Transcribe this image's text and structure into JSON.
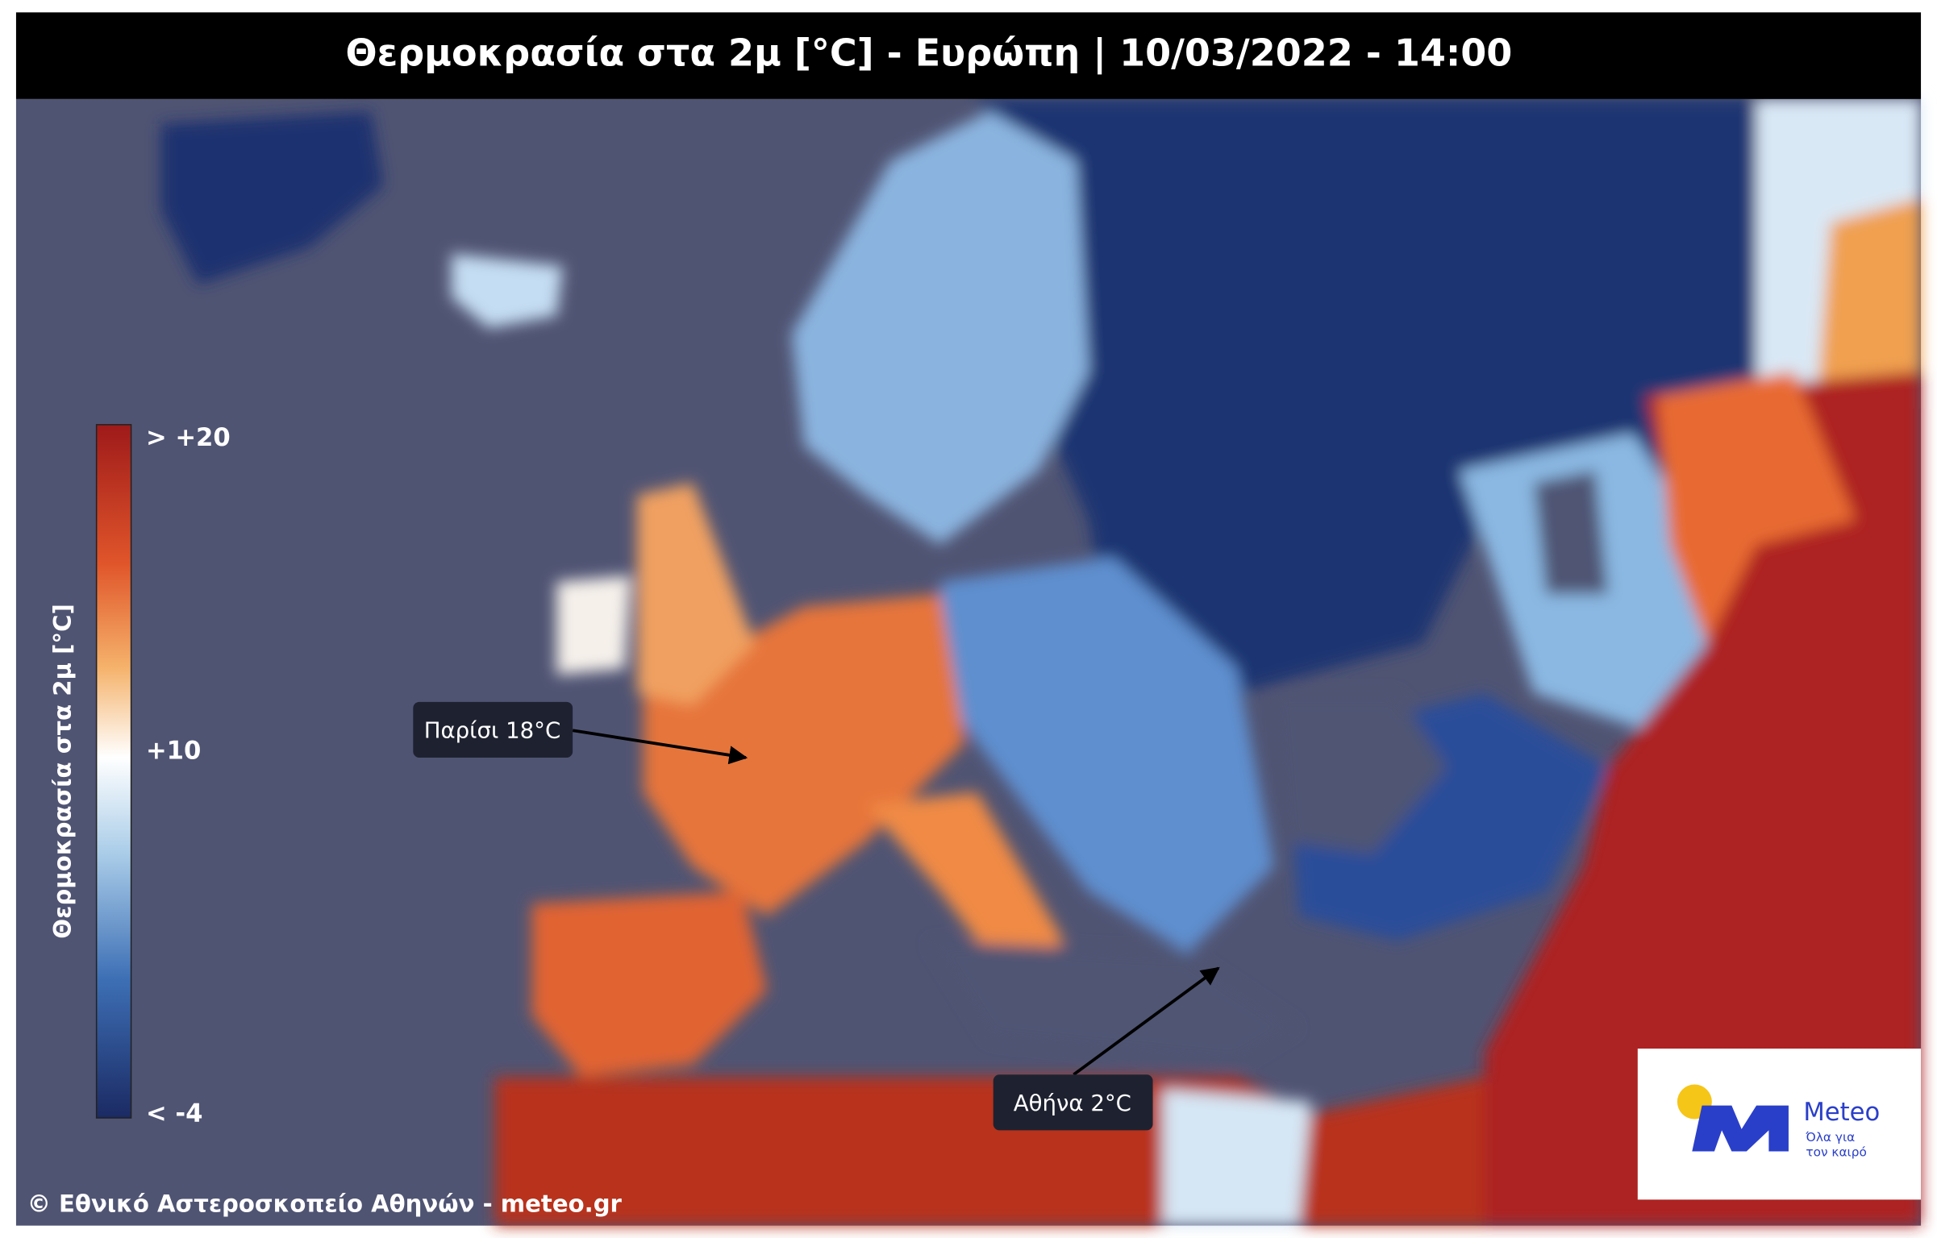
{
  "header": {
    "title": "Θερμοκρασία στα 2μ [°C] - Ευρώπη | 10/03/2022 - 14:00"
  },
  "legend": {
    "label": "Θερμοκρασία στα 2μ [°C]",
    "ticks": [
      "> +20",
      "+10",
      "< -4"
    ]
  },
  "annotations": [
    "Παρίσι 18°C",
    "Αθήνα 2°C"
  ],
  "footer": {
    "copyright": "© Εθνικό Αστεροσκοπείο Αθηνών - meteo.gr"
  },
  "logo": {
    "name": "Meteo",
    "tagline": [
      "Όλα για",
      "τον καιρό"
    ]
  }
}
